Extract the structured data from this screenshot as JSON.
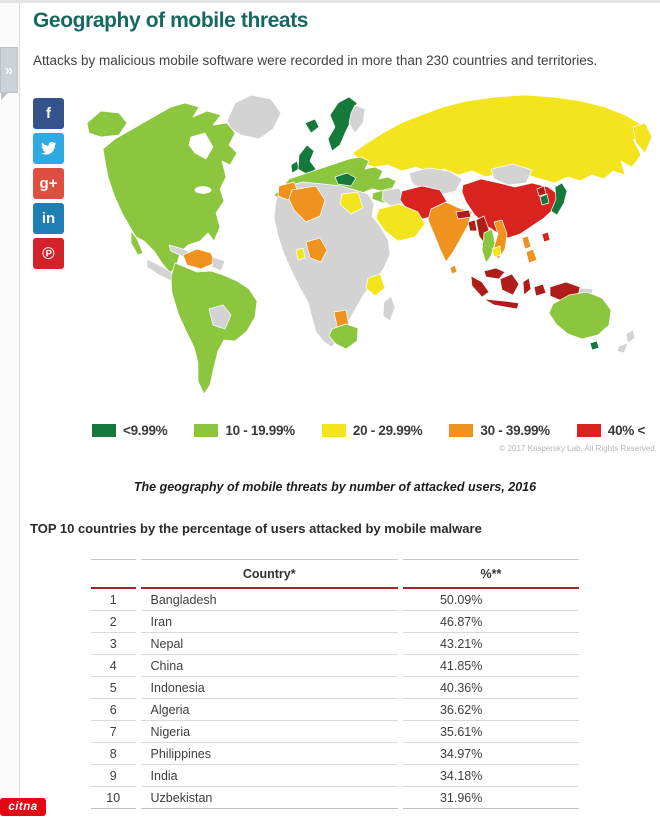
{
  "header": {
    "title": "Geography of mobile threats",
    "subtitle": "Attacks by malicious mobile software were recorded in more than 230 countries and territories."
  },
  "side_tab": {
    "glyph": "»"
  },
  "social": {
    "items": [
      {
        "name": "facebook",
        "glyph": "f",
        "color": "#34538c"
      },
      {
        "name": "twitter",
        "glyph": "bird",
        "color": "#2caae1"
      },
      {
        "name": "googleplus",
        "glyph": "g+",
        "color": "#dd4f41"
      },
      {
        "name": "linkedin",
        "glyph": "in",
        "color": "#1d7fb5"
      },
      {
        "name": "pinterest",
        "glyph": "℗",
        "color": "#d3222a"
      }
    ]
  },
  "map": {
    "copyright": "© 2017 Kaspersky Lab. All Rights Reserved.",
    "palette": {
      "dgreen": "#15793b",
      "green": "#8cc63f",
      "yellow": "#f3e41e",
      "orange": "#f0921e",
      "red": "#d8231e",
      "dred": "#ae1d17",
      "gray": "#d3d3d3"
    },
    "regions": {
      "greenland": "gray",
      "alaska": "green",
      "canada-us-mexico": "green",
      "baja": "green",
      "central-america": "gray",
      "cuba": "gray",
      "hispaniola": "gray",
      "venezuela": "orange",
      "guyanas": "gray",
      "south-america": "green",
      "bolivia-paraguay": "gray",
      "uk": "dgreen",
      "ireland": "dgreen",
      "iceland": "dgreen",
      "scandinavia": "dgreen",
      "finland": "gray",
      "europe": "green",
      "iberia": "green",
      "italy": "green",
      "central-europe": "dgreen",
      "greece": "dgreen",
      "turkey": "green",
      "russia": "yellow",
      "kamchatka": "yellow",
      "kazakhstan": "gray",
      "mongolia": "gray",
      "china": "red",
      "taiwan": "red",
      "korea-south": "dgreen",
      "korea-north": "dred",
      "japan": "dgreen",
      "iraq-syria": "gray",
      "iran": "red",
      "saudi": "yellow",
      "pakistan-india": "orange",
      "nepal": "dred",
      "bangladesh": "dred",
      "sri-lanka": "orange",
      "myanmar": "dred",
      "thailand": "green",
      "vietnam": "orange",
      "cambodia": "yellow",
      "malaysia": "dred",
      "sumatra": "dred",
      "java": "dred",
      "borneo": "dred",
      "sulawesi": "dred",
      "indonesia-east": "dred",
      "philippines-1": "orange",
      "philippines-2": "orange",
      "png": "dred",
      "png-east": "gray",
      "africa": "gray",
      "morocco": "orange",
      "algeria": "orange",
      "egypt": "yellow",
      "ghana": "yellow",
      "nigeria": "orange",
      "tanzania": "yellow",
      "namibia": "orange",
      "south-africa": "green",
      "madagascar": "gray",
      "australia": "green",
      "tasmania": "dgreen",
      "new-zealand-1": "gray",
      "new-zealand-2": "gray"
    },
    "legend": [
      {
        "label": "<9.99%",
        "color": "#15793b"
      },
      {
        "label": "10 - 19.99%",
        "color": "#8cc63f"
      },
      {
        "label": "20 - 29.99%",
        "color": "#f3e41e"
      },
      {
        "label": "30 - 39.99%",
        "color": "#f0921e"
      },
      {
        "label": "40% <",
        "color": "#d8231e"
      }
    ]
  },
  "caption": "The geography of mobile threats by number of attacked users, 2016",
  "table": {
    "heading": "TOP 10 countries by the percentage of users attacked by mobile malware",
    "columns": {
      "country": "Country*",
      "pct": "%**"
    },
    "rows": [
      {
        "rank": "1",
        "country": "Bangladesh",
        "pct": "50.09%"
      },
      {
        "rank": "2",
        "country": "Iran",
        "pct": "46.87%"
      },
      {
        "rank": "3",
        "country": "Nepal",
        "pct": "43.21%"
      },
      {
        "rank": "4",
        "country": "China",
        "pct": "41.85%"
      },
      {
        "rank": "5",
        "country": "Indonesia",
        "pct": "40.36%"
      },
      {
        "rank": "6",
        "country": "Algeria",
        "pct": "36.62%"
      },
      {
        "rank": "7",
        "country": "Nigeria",
        "pct": "35.61%"
      },
      {
        "rank": "8",
        "country": "Philippines",
        "pct": "34.97%"
      },
      {
        "rank": "9",
        "country": "India",
        "pct": "34.18%"
      },
      {
        "rank": "10",
        "country": "Uzbekistan",
        "pct": "31.96%"
      }
    ]
  },
  "footer": {
    "logo_text": "citna"
  },
  "chart_data": {
    "type": "table",
    "title": "TOP 10 countries by the percentage of users attacked by mobile malware",
    "columns": [
      "Country*",
      "%**"
    ],
    "rows": [
      [
        "Bangladesh",
        50.09
      ],
      [
        "Iran",
        46.87
      ],
      [
        "Nepal",
        43.21
      ],
      [
        "China",
        41.85
      ],
      [
        "Indonesia",
        40.36
      ],
      [
        "Algeria",
        36.62
      ],
      [
        "Nigeria",
        35.61
      ],
      [
        "Philippines",
        34.97
      ],
      [
        "India",
        34.18
      ],
      [
        "Uzbekistan",
        31.96
      ]
    ],
    "map_legend_bins": [
      "<9.99%",
      "10 - 19.99%",
      "20 - 29.99%",
      "30 - 39.99%",
      "40% <"
    ]
  }
}
